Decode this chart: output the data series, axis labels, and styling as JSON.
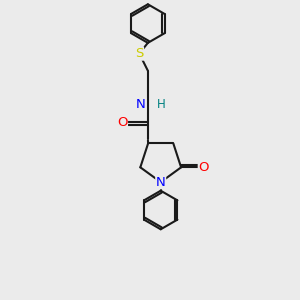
{
  "background_color": "#ebebeb",
  "bond_color": "#1a1a1a",
  "bond_width": 1.5,
  "atom_colors": {
    "N": "#0000ff",
    "O": "#ff0000",
    "S": "#cccc00",
    "H": "#008080",
    "C": "#1a1a1a"
  },
  "fig_width": 3.0,
  "fig_height": 3.0,
  "dpi": 100,
  "xlim": [
    60,
    240
  ],
  "ylim": [
    10,
    290
  ]
}
